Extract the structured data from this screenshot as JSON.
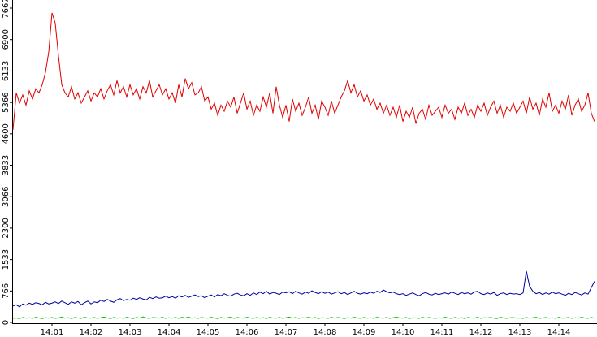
{
  "chart_data": {
    "type": "line",
    "categories": [
      null,
      null,
      null,
      null,
      null,
      null,
      null,
      null,
      null,
      null,
      null,
      null,
      "14:01",
      null,
      null,
      null,
      null,
      null,
      null,
      null,
      null,
      null,
      null,
      null,
      "14:02",
      null,
      null,
      null,
      null,
      null,
      null,
      null,
      null,
      null,
      null,
      null,
      "14:03",
      null,
      null,
      null,
      null,
      null,
      null,
      null,
      null,
      null,
      null,
      null,
      "14:04",
      null,
      null,
      null,
      null,
      null,
      null,
      null,
      null,
      null,
      null,
      null,
      "14:05",
      null,
      null,
      null,
      null,
      null,
      null,
      null,
      null,
      null,
      null,
      null,
      "14:06",
      null,
      null,
      null,
      null,
      null,
      null,
      null,
      null,
      null,
      null,
      null,
      "14:07",
      null,
      null,
      null,
      null,
      null,
      null,
      null,
      null,
      null,
      null,
      null,
      "14:08",
      null,
      null,
      null,
      null,
      null,
      null,
      null,
      null,
      null,
      null,
      null,
      "14:09",
      null,
      null,
      null,
      null,
      null,
      null,
      null,
      null,
      null,
      null,
      null,
      "14:10",
      null,
      null,
      null,
      null,
      null,
      null,
      null,
      null,
      null,
      null,
      null,
      "14:11",
      null,
      null,
      null,
      null,
      null,
      null,
      null,
      null,
      null,
      null,
      null,
      "14:12",
      null,
      null,
      null,
      null,
      null,
      null,
      null,
      null,
      null,
      null,
      null,
      "14:13",
      null,
      null,
      null,
      null,
      null,
      null,
      null,
      null,
      null,
      null,
      null,
      "14:14",
      null,
      null,
      null,
      null,
      null,
      null,
      null,
      null,
      null,
      null,
      null
    ],
    "series": [
      {
        "color": "#e00000",
        "values": [
          4700,
          5600,
          5350,
          5550,
          5300,
          5650,
          5450,
          5700,
          5600,
          5800,
          6100,
          6600,
          7550,
          7300,
          6500,
          5800,
          5600,
          5500,
          5750,
          5450,
          5600,
          5350,
          5500,
          5650,
          5400,
          5600,
          5500,
          5700,
          5450,
          5650,
          5800,
          5550,
          5900,
          5600,
          5750,
          5500,
          5800,
          5550,
          5700,
          5450,
          5750,
          5600,
          5900,
          5500,
          5650,
          5800,
          5550,
          5700,
          5450,
          5600,
          5350,
          5800,
          5500,
          5950,
          5700,
          5850,
          5550,
          5600,
          5750,
          5400,
          5500,
          5200,
          5350,
          5050,
          5300,
          5150,
          5400,
          5250,
          5500,
          5100,
          5350,
          5600,
          5200,
          5400,
          5050,
          5300,
          5150,
          5500,
          5250,
          5600,
          5100,
          5750,
          5300,
          5000,
          5300,
          4900,
          5450,
          5150,
          5350,
          5050,
          5250,
          5500,
          5100,
          5300,
          4950,
          5400,
          5250,
          5050,
          5400,
          5100,
          5300,
          5500,
          5650,
          5900,
          5600,
          5800,
          5500,
          5650,
          5400,
          5550,
          5300,
          5450,
          5200,
          5350,
          5100,
          5300,
          5050,
          5250,
          5000,
          5300,
          4900,
          5150,
          5000,
          5250,
          4850,
          5100,
          5200,
          4950,
          5300,
          5050,
          5150,
          5250,
          5000,
          5300,
          5100,
          5200,
          4950,
          5250,
          5100,
          5350,
          5050,
          5200,
          5000,
          5300,
          5150,
          5350,
          5050,
          5250,
          5400,
          5100,
          5300,
          5000,
          5250,
          5150,
          5350,
          5100,
          5250,
          5400,
          5100,
          5500,
          5200,
          5350,
          5050,
          5450,
          5250,
          5600,
          5150,
          5300,
          5100,
          5400,
          5200,
          5550,
          5050,
          5300,
          5450,
          5150,
          5300,
          5600,
          5100,
          4900
        ]
      },
      {
        "color": "#0000a0",
        "values": [
          400,
          430,
          380,
          450,
          420,
          470,
          440,
          480,
          460,
          430,
          490,
          450,
          470,
          500,
          460,
          520,
          480,
          440,
          500,
          470,
          510,
          430,
          480,
          520,
          450,
          500,
          480,
          540,
          510,
          560,
          520,
          490,
          550,
          580,
          530,
          560,
          540,
          590,
          560,
          600,
          570,
          550,
          610,
          580,
          620,
          590,
          600,
          640,
          600,
          630,
          590,
          650,
          620,
          660,
          610,
          640,
          670,
          630,
          650,
          600,
          640,
          670,
          620,
          680,
          650,
          700,
          660,
          640,
          690,
          710,
          670,
          650,
          700,
          660,
          720,
          680,
          740,
          700,
          760,
          690,
          730,
          710,
          680,
          740,
          720,
          750,
          700,
          760,
          720,
          690,
          740,
          710,
          770,
          730,
          700,
          750,
          710,
          740,
          690,
          720,
          750,
          700,
          730,
          680,
          720,
          760,
          710,
          690,
          720,
          700,
          740,
          710,
          760,
          730,
          790,
          750,
          720,
          740,
          700,
          680,
          700,
          660,
          690,
          720,
          680,
          650,
          700,
          730,
          690,
          670,
          710,
          680,
          700,
          720,
          690,
          740,
          710,
          680,
          730,
          700,
          720,
          690,
          740,
          760,
          700,
          680,
          720,
          690,
          730,
          660,
          700,
          720,
          680,
          710,
          690,
          700,
          680,
          720,
          1250,
          880,
          760,
          700,
          730,
          680,
          720,
          690,
          740,
          700,
          720,
          690,
          660,
          710,
          680,
          730,
          700,
          670,
          720,
          690,
          850,
          1000
        ]
      },
      {
        "color": "#00c000",
        "values": [
          100,
          110,
          95,
          120,
          105,
          115,
          100,
          125,
          110,
          95,
          115,
          105,
          120,
          100,
          110,
          130,
          105,
          115,
          95,
          120,
          110,
          100,
          125,
          110,
          105,
          120,
          100,
          115,
          130,
          110,
          95,
          120,
          105,
          115,
          100,
          125,
          110,
          95,
          120,
          105,
          135,
          110,
          100,
          120,
          115,
          105,
          125,
          100,
          115,
          105,
          120,
          100,
          125,
          110,
          130,
          105,
          115,
          100,
          120,
          110,
          105,
          125,
          110,
          95,
          120,
          105,
          115,
          130,
          100,
          120,
          110,
          105,
          125,
          110,
          100,
          120,
          105,
          115,
          95,
          125,
          110,
          105,
          120,
          100,
          115,
          130,
          105,
          120,
          100,
          115,
          110,
          125,
          105,
          120,
          95,
          115,
          110,
          100,
          125,
          105,
          120,
          110,
          95,
          115,
          105,
          125,
          110,
          100,
          120,
          105,
          115,
          100,
          125,
          110,
          105,
          120,
          100,
          115,
          130,
          110,
          105,
          120,
          95,
          115,
          110,
          100,
          125,
          105,
          120,
          110,
          100,
          115,
          105,
          125,
          110,
          100,
          120,
          105,
          115,
          95,
          120,
          110,
          105,
          125,
          100,
          115,
          110,
          120,
          105,
          95,
          125,
          110,
          100,
          115,
          120,
          105,
          110,
          100,
          120,
          105,
          115,
          125,
          100,
          110,
          120,
          105,
          115,
          100,
          125,
          105,
          110,
          120,
          100,
          115,
          105,
          125,
          110,
          100,
          120,
          105
        ]
      }
    ],
    "ylim": [
      0,
      7667
    ],
    "yticks": [
      0,
      766,
      1533,
      2300,
      3066,
      3833,
      4600,
      5366,
      6133,
      6900,
      7667
    ]
  }
}
